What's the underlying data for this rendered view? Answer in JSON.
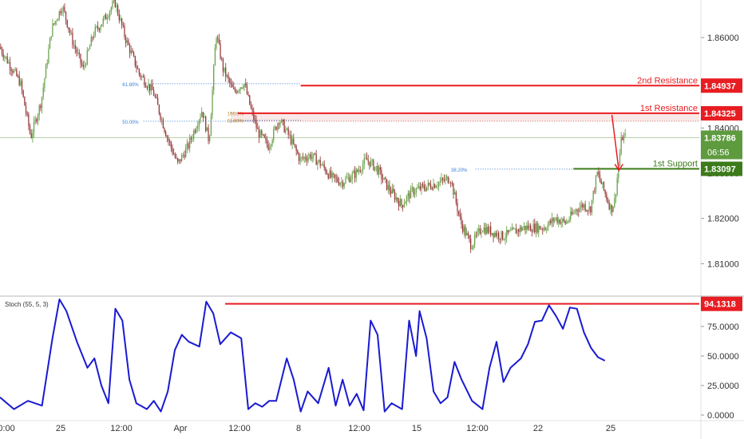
{
  "chart_data": [
    {
      "type": "candlestick",
      "title": "",
      "ylim": [
        1.803,
        1.8683
      ],
      "yticks": [
        "1.86000",
        "1.85000",
        "1.84000",
        "1.83000",
        "1.82000",
        "1.81000"
      ],
      "ytick_values": [
        1.86,
        1.85,
        1.84,
        1.83,
        1.82,
        1.81
      ],
      "xticks": [
        "0:00",
        "25",
        "12:00",
        "Apr",
        "12:00",
        "8",
        "12:00",
        "15",
        "12:00",
        "22",
        "25"
      ],
      "price_path": [
        [
          0,
          1.858
        ],
        [
          0.03,
          1.85
        ],
        [
          0.045,
          1.838
        ],
        [
          0.06,
          1.846
        ],
        [
          0.075,
          1.862
        ],
        [
          0.09,
          1.867
        ],
        [
          0.105,
          1.859
        ],
        [
          0.12,
          1.853
        ],
        [
          0.135,
          1.861
        ],
        [
          0.15,
          1.864
        ],
        [
          0.165,
          1.868
        ],
        [
          0.18,
          1.86
        ],
        [
          0.2,
          1.852
        ],
        [
          0.22,
          1.848
        ],
        [
          0.24,
          1.838
        ],
        [
          0.255,
          1.832
        ],
        [
          0.27,
          1.836
        ],
        [
          0.29,
          1.844
        ],
        [
          0.3,
          1.837
        ],
        [
          0.31,
          1.861
        ],
        [
          0.32,
          1.853
        ],
        [
          0.335,
          1.848
        ],
        [
          0.35,
          1.85
        ],
        [
          0.36,
          1.844
        ],
        [
          0.37,
          1.839
        ],
        [
          0.385,
          1.836
        ],
        [
          0.4,
          1.842
        ],
        [
          0.415,
          1.838
        ],
        [
          0.43,
          1.833
        ],
        [
          0.445,
          1.834
        ],
        [
          0.46,
          1.832
        ],
        [
          0.475,
          1.829
        ],
        [
          0.49,
          1.828
        ],
        [
          0.51,
          1.83
        ],
        [
          0.525,
          1.833
        ],
        [
          0.54,
          1.831
        ],
        [
          0.555,
          1.827
        ],
        [
          0.575,
          1.823
        ],
        [
          0.59,
          1.826
        ],
        [
          0.61,
          1.827
        ],
        [
          0.63,
          1.828
        ],
        [
          0.645,
          1.829
        ],
        [
          0.66,
          1.819
        ],
        [
          0.675,
          1.814
        ],
        [
          0.69,
          1.818
        ],
        [
          0.705,
          1.817
        ],
        [
          0.72,
          1.816
        ],
        [
          0.735,
          1.817
        ],
        [
          0.75,
          1.818
        ],
        [
          0.765,
          1.818
        ],
        [
          0.78,
          1.818
        ],
        [
          0.795,
          1.82
        ],
        [
          0.81,
          1.819
        ],
        [
          0.825,
          1.822
        ],
        [
          0.835,
          1.823
        ],
        [
          0.845,
          1.822
        ],
        [
          0.855,
          1.83
        ],
        [
          0.865,
          1.826
        ],
        [
          0.875,
          1.822
        ],
        [
          0.88,
          1.824
        ],
        [
          0.89,
          1.838
        ],
        [
          0.895,
          1.8379
        ]
      ],
      "levels": [
        {
          "label": "2nd Resistance",
          "value": 1.84937,
          "value_text": "1.84937",
          "color": "#e81d22"
        },
        {
          "label": "1st Resistance",
          "value": 1.84325,
          "value_text": "1.84325",
          "color": "#e81d22"
        },
        {
          "label": "1st Support",
          "value": 1.83097,
          "value_text": "1.83097",
          "color": "#3c7b1a"
        }
      ],
      "fib_annotations": [
        {
          "label": "61.80%",
          "value": 1.8498
        },
        {
          "label": "50.00%",
          "value": 1.8415
        },
        {
          "label": "100.0%",
          "value": 1.8433
        },
        {
          "label": "61.80%",
          "value": 1.8417
        },
        {
          "label": "38.20%",
          "value": 1.8309
        }
      ],
      "fib_zone": [
        1.8415,
        1.8433
      ],
      "current_price": {
        "value": 1.83786,
        "text": "1.83786",
        "countdown": "06:56",
        "color": "#5e9b3e"
      },
      "arrow": {
        "from": 1.8429,
        "to": 1.8306,
        "color": "#e81d22"
      },
      "colors": {
        "up": "#5e9b3e",
        "down": "#8e2a2a"
      }
    },
    {
      "type": "line",
      "title": "Stoch (55, 5, 3)",
      "ylim": [
        0,
        100
      ],
      "yticks": [
        "75.0000",
        "50.0000",
        "25.0000",
        "0.0000"
      ],
      "ytick_values": [
        75,
        50,
        25,
        0
      ],
      "series": [
        {
          "color": "#1a1ad2",
          "values": [
            [
              0,
              15
            ],
            [
              0.02,
              5
            ],
            [
              0.04,
              12
            ],
            [
              0.06,
              8
            ],
            [
              0.075,
              65
            ],
            [
              0.085,
              98
            ],
            [
              0.095,
              88
            ],
            [
              0.11,
              62
            ],
            [
              0.125,
              40
            ],
            [
              0.135,
              48
            ],
            [
              0.145,
              25
            ],
            [
              0.155,
              10
            ],
            [
              0.165,
              90
            ],
            [
              0.175,
              80
            ],
            [
              0.185,
              30
            ],
            [
              0.195,
              10
            ],
            [
              0.21,
              5
            ],
            [
              0.22,
              12
            ],
            [
              0.23,
              3
            ],
            [
              0.24,
              20
            ],
            [
              0.25,
              55
            ],
            [
              0.26,
              68
            ],
            [
              0.27,
              62
            ],
            [
              0.285,
              58
            ],
            [
              0.295,
              96
            ],
            [
              0.305,
              86
            ],
            [
              0.315,
              60
            ],
            [
              0.33,
              70
            ],
            [
              0.345,
              65
            ],
            [
              0.355,
              5
            ],
            [
              0.365,
              10
            ],
            [
              0.375,
              7
            ],
            [
              0.385,
              12
            ],
            [
              0.395,
              12
            ],
            [
              0.41,
              48
            ],
            [
              0.42,
              30
            ],
            [
              0.43,
              3
            ],
            [
              0.44,
              20
            ],
            [
              0.455,
              10
            ],
            [
              0.47,
              40
            ],
            [
              0.48,
              8
            ],
            [
              0.49,
              30
            ],
            [
              0.5,
              8
            ],
            [
              0.51,
              18
            ],
            [
              0.52,
              4
            ],
            [
              0.53,
              80
            ],
            [
              0.54,
              68
            ],
            [
              0.55,
              3
            ],
            [
              0.56,
              10
            ],
            [
              0.575,
              5
            ],
            [
              0.585,
              80
            ],
            [
              0.595,
              50
            ],
            [
              0.6,
              88
            ],
            [
              0.61,
              65
            ],
            [
              0.62,
              20
            ],
            [
              0.63,
              10
            ],
            [
              0.64,
              15
            ],
            [
              0.65,
              45
            ],
            [
              0.66,
              30
            ],
            [
              0.675,
              12
            ],
            [
              0.69,
              5
            ],
            [
              0.7,
              40
            ],
            [
              0.71,
              62
            ],
            [
              0.72,
              28
            ],
            [
              0.73,
              40
            ],
            [
              0.745,
              48
            ],
            [
              0.755,
              60
            ],
            [
              0.765,
              79
            ],
            [
              0.775,
              80
            ],
            [
              0.785,
              93
            ],
            [
              0.795,
              84
            ],
            [
              0.805,
              73
            ],
            [
              0.815,
              91
            ],
            [
              0.825,
              90
            ],
            [
              0.835,
              70
            ],
            [
              0.845,
              57
            ],
            [
              0.855,
              49
            ],
            [
              0.865,
              46
            ]
          ]
        }
      ],
      "levels": [
        {
          "value": 94.1318,
          "value_text": "94.1318",
          "color": "#e81d22"
        }
      ]
    }
  ]
}
